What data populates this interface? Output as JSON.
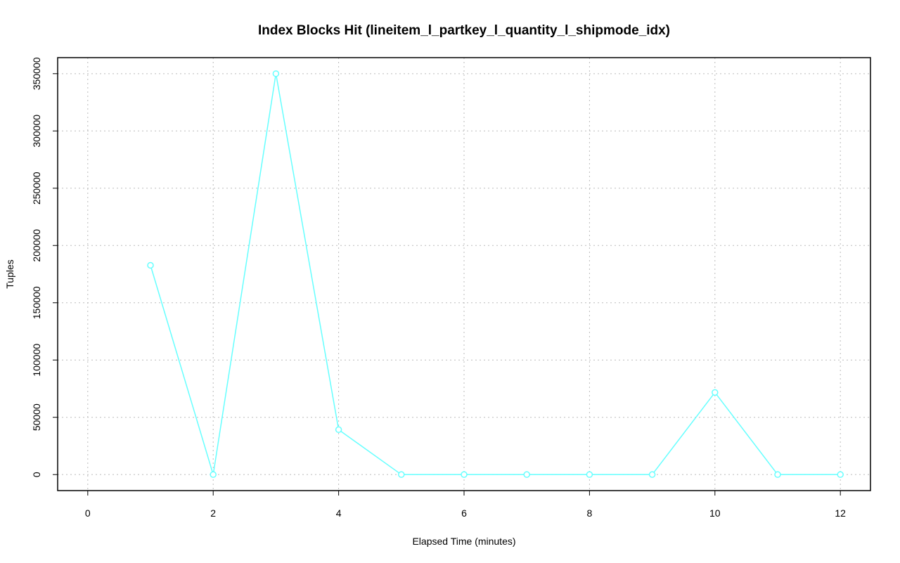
{
  "chart_data": {
    "type": "line",
    "title": "Index Blocks Hit (lineitem_l_partkey_l_quantity_l_shipmode_idx)",
    "x_label": "Elapsed Time (minutes)",
    "y_label": "Tuples",
    "x": [
      1,
      2,
      3,
      4,
      5,
      6,
      7,
      8,
      9,
      10,
      11,
      12
    ],
    "series": [
      {
        "color": "#66ffff",
        "values": [
          182700,
          0,
          350000,
          39200,
          0,
          0,
          0,
          0,
          0,
          71700,
          0,
          0
        ]
      }
    ],
    "xlim": [
      -0.48,
      12.48
    ],
    "xticks": [
      0,
      2,
      4,
      6,
      8,
      10,
      12
    ],
    "ylim": [
      -14000,
      364000
    ],
    "yticks": [
      0,
      50000,
      100000,
      150000,
      200000,
      250000,
      300000,
      350000
    ],
    "grid": true
  }
}
